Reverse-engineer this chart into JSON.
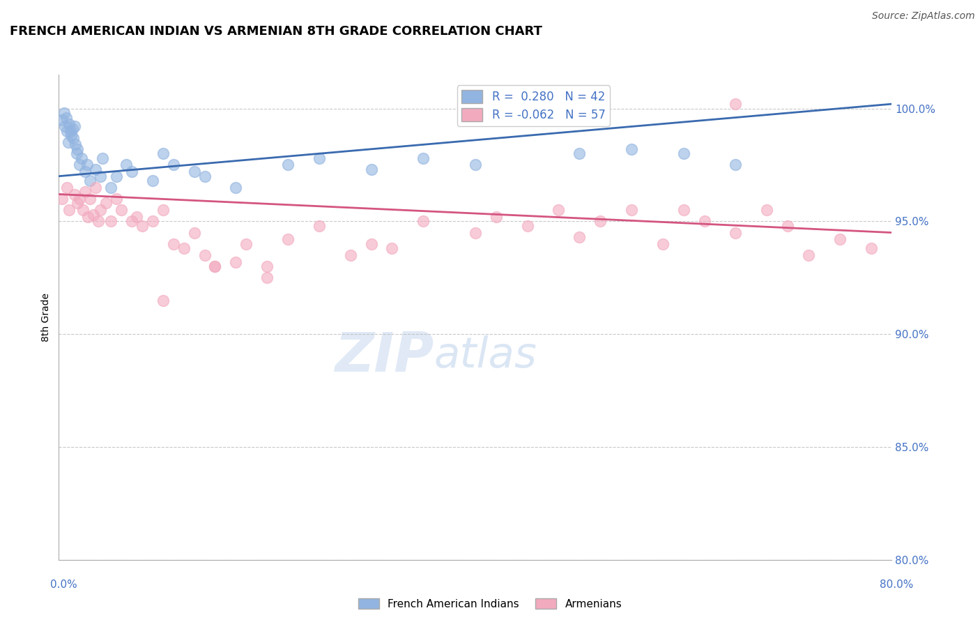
{
  "title": "FRENCH AMERICAN INDIAN VS ARMENIAN 8TH GRADE CORRELATION CHART",
  "source": "Source: ZipAtlas.com",
  "ylabel": "8th Grade",
  "xmin": 0.0,
  "xmax": 80.0,
  "ymin": 80.0,
  "ymax": 101.5,
  "yticks": [
    80.0,
    85.0,
    90.0,
    95.0,
    100.0
  ],
  "ytick_labels": [
    "80.0%",
    "85.0%",
    "90.0%",
    "95.0%",
    "100.0%"
  ],
  "legend_label_blue": "French American Indians",
  "legend_label_pink": "Armenians",
  "R_blue": 0.28,
  "N_blue": 42,
  "R_pink": -0.062,
  "N_pink": 57,
  "blue_color": "#92B4E0",
  "pink_color": "#F2AABF",
  "blue_line_color": "#3A6AAF",
  "pink_line_color": "#D45580",
  "watermark_zip": "ZIP",
  "watermark_atlas": "atlas",
  "blue_line_x0": 0.0,
  "blue_line_x1": 80.0,
  "blue_line_y0": 97.0,
  "blue_line_y1": 100.2,
  "pink_line_x0": 0.0,
  "pink_line_x1": 80.0,
  "pink_line_y0": 96.2,
  "pink_line_y1": 94.5,
  "blue_x": [
    0.3,
    0.5,
    0.6,
    0.7,
    0.8,
    0.9,
    1.0,
    1.1,
    1.2,
    1.3,
    1.4,
    1.5,
    1.6,
    1.7,
    1.8,
    2.0,
    2.2,
    2.5,
    2.7,
    3.0,
    3.5,
    4.0,
    4.2,
    5.0,
    5.5,
    6.5,
    7.0,
    9.0,
    10.0,
    11.0,
    13.0,
    14.0,
    17.0,
    22.0,
    25.0,
    30.0,
    35.0,
    40.0,
    50.0,
    55.0,
    60.0,
    65.0
  ],
  "blue_y": [
    99.5,
    99.8,
    99.2,
    99.6,
    99.0,
    98.5,
    99.3,
    99.0,
    98.8,
    99.1,
    98.7,
    99.2,
    98.4,
    98.0,
    98.2,
    97.5,
    97.8,
    97.2,
    97.5,
    96.8,
    97.3,
    97.0,
    97.8,
    96.5,
    97.0,
    97.5,
    97.2,
    96.8,
    98.0,
    97.5,
    97.2,
    97.0,
    96.5,
    97.5,
    97.8,
    97.3,
    97.8,
    97.5,
    98.0,
    98.2,
    98.0,
    97.5
  ],
  "pink_x": [
    0.3,
    0.8,
    1.0,
    1.5,
    1.8,
    2.0,
    2.3,
    2.5,
    2.8,
    3.0,
    3.3,
    3.5,
    3.8,
    4.0,
    4.5,
    5.0,
    5.5,
    6.0,
    7.0,
    7.5,
    8.0,
    9.0,
    10.0,
    11.0,
    12.0,
    13.0,
    14.0,
    15.0,
    17.0,
    18.0,
    20.0,
    22.0,
    25.0,
    28.0,
    30.0,
    32.0,
    35.0,
    40.0,
    42.0,
    45.0,
    48.0,
    50.0,
    52.0,
    55.0,
    58.0,
    60.0,
    62.0,
    65.0,
    68.0,
    70.0,
    72.0,
    75.0,
    78.0,
    10.0,
    15.0,
    20.0,
    65.0
  ],
  "pink_y": [
    96.0,
    96.5,
    95.5,
    96.2,
    95.8,
    96.0,
    95.5,
    96.3,
    95.2,
    96.0,
    95.3,
    96.5,
    95.0,
    95.5,
    95.8,
    95.0,
    96.0,
    95.5,
    95.0,
    95.2,
    94.8,
    95.0,
    95.5,
    94.0,
    93.8,
    94.5,
    93.5,
    93.0,
    93.2,
    94.0,
    93.0,
    94.2,
    94.8,
    93.5,
    94.0,
    93.8,
    95.0,
    94.5,
    95.2,
    94.8,
    95.5,
    94.3,
    95.0,
    95.5,
    94.0,
    95.5,
    95.0,
    94.5,
    95.5,
    94.8,
    93.5,
    94.2,
    93.8,
    91.5,
    93.0,
    92.5,
    100.2
  ]
}
